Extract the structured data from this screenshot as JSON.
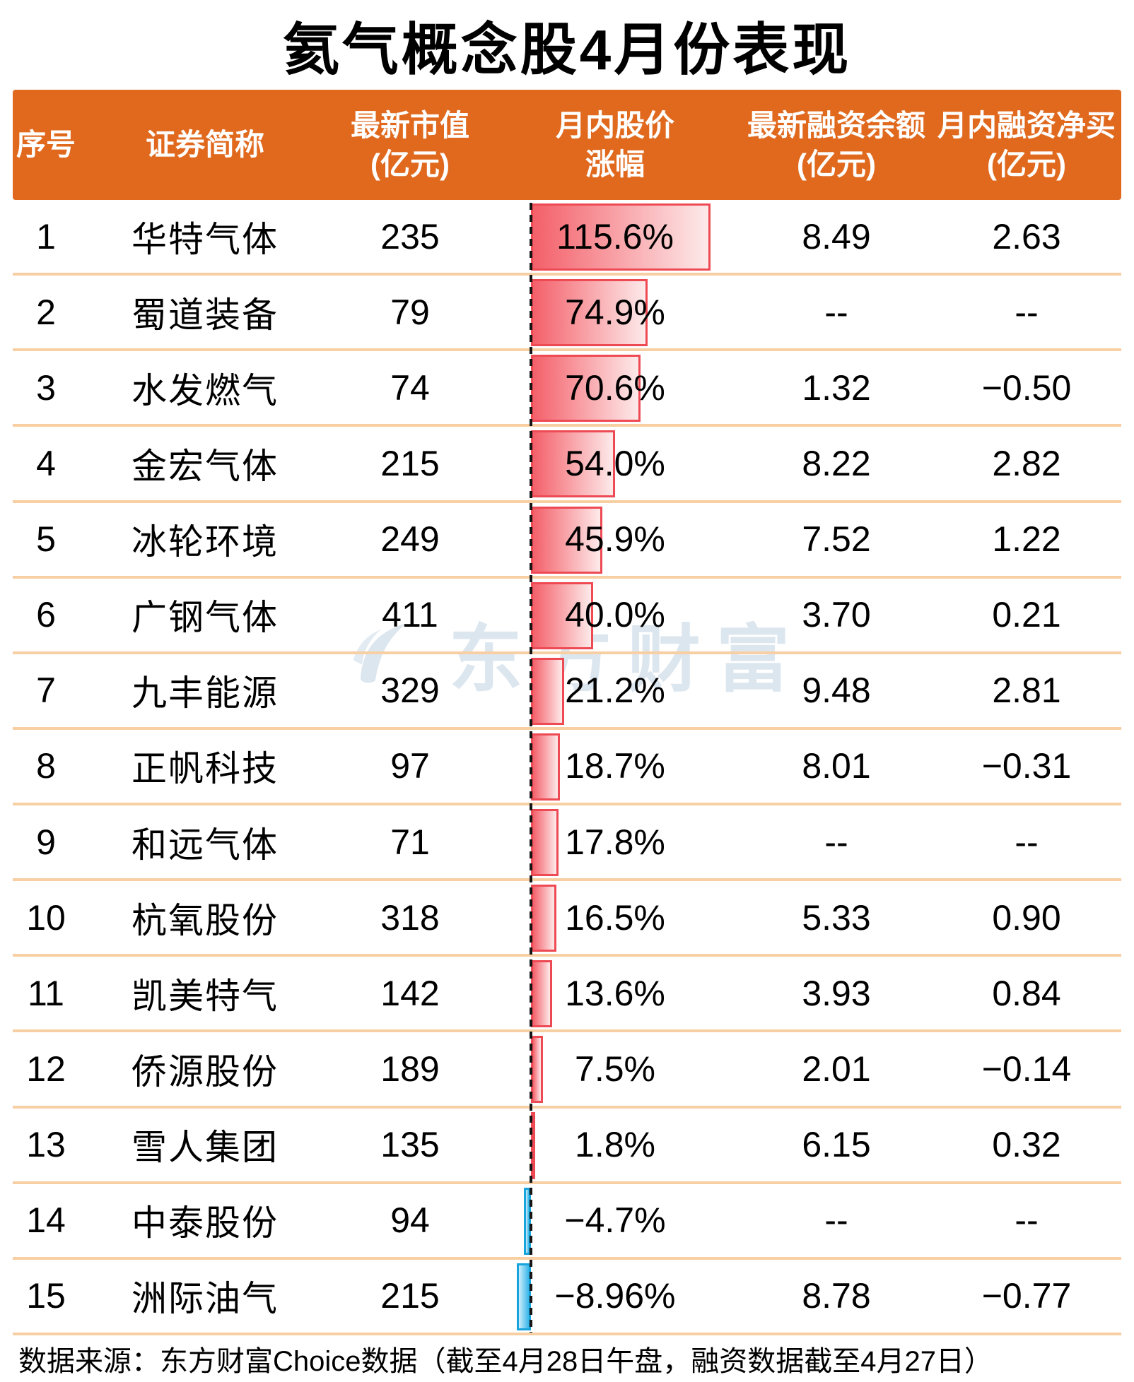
{
  "title": "氦气概念股4月份表现",
  "watermark": {
    "label": "东方财富"
  },
  "table": {
    "headers": {
      "index": "序号",
      "name": "证券简称",
      "mcap_line1": "最新市值",
      "mcap_line2": "(亿元)",
      "chg_line1": "月内股价",
      "chg_line2": "涨幅",
      "balance_line1": "最新融资余额",
      "balance_line2": "(亿元)",
      "netbuy_line1": "月内融资净买",
      "netbuy_line2": "(亿元)"
    },
    "rows": [
      {
        "no": "1",
        "name": "华特气体",
        "mcap": "235",
        "chg": "115.6%",
        "chg_val": 115.6,
        "balance": "8.49",
        "netbuy": "2.63"
      },
      {
        "no": "2",
        "name": "蜀道装备",
        "mcap": "79",
        "chg": "74.9%",
        "chg_val": 74.9,
        "balance": "--",
        "netbuy": "--"
      },
      {
        "no": "3",
        "name": "水发燃气",
        "mcap": "74",
        "chg": "70.6%",
        "chg_val": 70.6,
        "balance": "1.32",
        "netbuy": "−0.50"
      },
      {
        "no": "4",
        "name": "金宏气体",
        "mcap": "215",
        "chg": "54.0%",
        "chg_val": 54.0,
        "balance": "8.22",
        "netbuy": "2.82"
      },
      {
        "no": "5",
        "name": "冰轮环境",
        "mcap": "249",
        "chg": "45.9%",
        "chg_val": 45.9,
        "balance": "7.52",
        "netbuy": "1.22"
      },
      {
        "no": "6",
        "name": "广钢气体",
        "mcap": "411",
        "chg": "40.0%",
        "chg_val": 40.0,
        "balance": "3.70",
        "netbuy": "0.21"
      },
      {
        "no": "7",
        "name": "九丰能源",
        "mcap": "329",
        "chg": "21.2%",
        "chg_val": 21.2,
        "balance": "9.48",
        "netbuy": "2.81"
      },
      {
        "no": "8",
        "name": "正帆科技",
        "mcap": "97",
        "chg": "18.7%",
        "chg_val": 18.7,
        "balance": "8.01",
        "netbuy": "−0.31"
      },
      {
        "no": "9",
        "name": "和远气体",
        "mcap": "71",
        "chg": "17.8%",
        "chg_val": 17.8,
        "balance": "--",
        "netbuy": "--"
      },
      {
        "no": "10",
        "name": "杭氧股份",
        "mcap": "318",
        "chg": "16.5%",
        "chg_val": 16.5,
        "balance": "5.33",
        "netbuy": "0.90"
      },
      {
        "no": "11",
        "name": "凯美特气",
        "mcap": "142",
        "chg": "13.6%",
        "chg_val": 13.6,
        "balance": "3.93",
        "netbuy": "0.84"
      },
      {
        "no": "12",
        "name": "侨源股份",
        "mcap": "189",
        "chg": "7.5%",
        "chg_val": 7.5,
        "balance": "2.01",
        "netbuy": "−0.14"
      },
      {
        "no": "13",
        "name": "雪人集团",
        "mcap": "135",
        "chg": "1.8%",
        "chg_val": 1.8,
        "balance": "6.15",
        "netbuy": "0.32"
      },
      {
        "no": "14",
        "name": "中泰股份",
        "mcap": "94",
        "chg": "−4.7%",
        "chg_val": -4.7,
        "balance": "--",
        "netbuy": "--"
      },
      {
        "no": "15",
        "name": "洲际油气",
        "mcap": "215",
        "chg": "−8.96%",
        "chg_val": -8.96,
        "balance": "8.78",
        "netbuy": "−0.77"
      }
    ]
  },
  "footer": {
    "source": "数据来源：东方财富Choice数据（截至4月28日午盘，融资数据截至4月27日）"
  },
  "colors": {
    "header_bg": "#e0691e",
    "row_separator": "#f8cfa3",
    "bar_positive_start": "#f4606a",
    "bar_positive_end": "#fdeaea",
    "bar_positive_border": "#ee4a54",
    "bar_negative_start": "#cdeefb",
    "bar_negative_end": "#38b6e9",
    "bar_negative_border": "#17a3dc",
    "baseline_dash": "#161616",
    "watermark": "#dce6ef"
  },
  "chart_data": {
    "type": "table",
    "title": "氦气概念股4月份表现",
    "columns": [
      "序号",
      "证券简称",
      "最新市值(亿元)",
      "月内股价涨幅",
      "最新融资余额(亿元)",
      "月内融资净买(亿元)"
    ],
    "rows": [
      [
        "1",
        "华特气体",
        "235",
        "115.6%",
        "8.49",
        "2.63"
      ],
      [
        "2",
        "蜀道装备",
        "79",
        "74.9%",
        "--",
        "--"
      ],
      [
        "3",
        "水发燃气",
        "74",
        "70.6%",
        "1.32",
        "−0.50"
      ],
      [
        "4",
        "金宏气体",
        "215",
        "54.0%",
        "8.22",
        "2.82"
      ],
      [
        "5",
        "冰轮环境",
        "249",
        "45.9%",
        "7.52",
        "1.22"
      ],
      [
        "6",
        "广钢气体",
        "411",
        "40.0%",
        "3.70",
        "0.21"
      ],
      [
        "7",
        "九丰能源",
        "329",
        "21.2%",
        "9.48",
        "2.81"
      ],
      [
        "8",
        "正帆科技",
        "97",
        "18.7%",
        "8.01",
        "−0.31"
      ],
      [
        "9",
        "和远气体",
        "71",
        "17.8%",
        "--",
        "--"
      ],
      [
        "10",
        "杭氧股份",
        "318",
        "16.5%",
        "5.33",
        "0.90"
      ],
      [
        "11",
        "凯美特气",
        "142",
        "13.6%",
        "3.93",
        "0.84"
      ],
      [
        "12",
        "侨源股份",
        "189",
        "7.5%",
        "2.01",
        "−0.14"
      ],
      [
        "13",
        "雪人集团",
        "135",
        "1.8%",
        "6.15",
        "0.32"
      ],
      [
        "14",
        "中泰股份",
        "94",
        "−4.7%",
        "--",
        "--"
      ],
      [
        "15",
        "洲际油气",
        "215",
        "−8.96%",
        "8.78",
        "−0.77"
      ]
    ],
    "embedded_bar_chart": {
      "type": "bar",
      "column": "月内股价涨幅",
      "categories": [
        "华特气体",
        "蜀道装备",
        "水发燃气",
        "金宏气体",
        "冰轮环境",
        "广钢气体",
        "九丰能源",
        "正帆科技",
        "和远气体",
        "杭氧股份",
        "凯美特气",
        "侨源股份",
        "雪人集团",
        "中泰股份",
        "洲际油气"
      ],
      "values": [
        115.6,
        74.9,
        70.6,
        54.0,
        45.9,
        40.0,
        21.2,
        18.7,
        17.8,
        16.5,
        13.6,
        7.5,
        1.8,
        -4.7,
        -8.96
      ],
      "baseline": 0,
      "orientation": "horizontal",
      "positive_color": "#f4606a",
      "negative_color": "#38b6e9"
    },
    "source_note": "数据来源：东方财富Choice数据（截至4月28日午盘，融资数据截至4月27日）"
  }
}
